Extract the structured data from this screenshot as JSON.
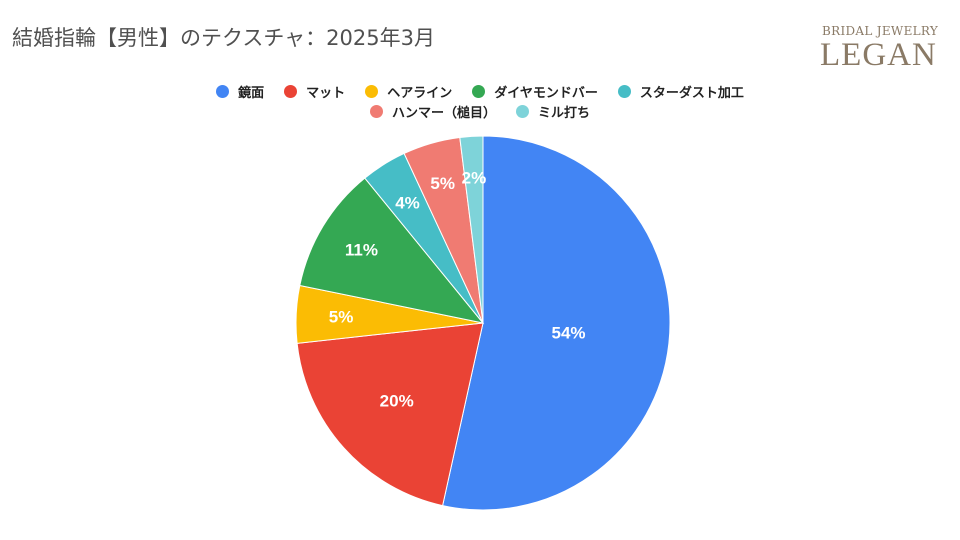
{
  "title": "結婚指輪【男性】のテクスチャ：2025年3月",
  "logo": {
    "top_text": "BRIDAL JEWELRY",
    "main_text": "LEGAN"
  },
  "chart_data": {
    "type": "pie",
    "title": "結婚指輪【男性】のテクスチャ：2025年3月",
    "legend_position": "top",
    "categories": [
      "鏡面",
      "マット",
      "ヘアライン",
      "ダイヤモンドバー",
      "スターダスト加工",
      "ハンマー（槌目）",
      "ミル打ち"
    ],
    "values": [
      54,
      20,
      5,
      11,
      4,
      5,
      2
    ],
    "labels": [
      "54%",
      "20%",
      "5%",
      "11%",
      "4%",
      "5%",
      "2%"
    ],
    "colors": [
      "#4285f4",
      "#ea4335",
      "#fbbc04",
      "#34a853",
      "#46bdc6",
      "#f07b72",
      "#7ed3d9"
    ]
  },
  "legend": {
    "rows": [
      [
        0,
        1,
        2,
        3,
        4
      ],
      [
        5,
        6
      ]
    ]
  }
}
